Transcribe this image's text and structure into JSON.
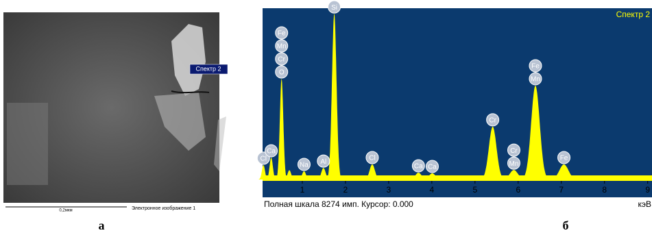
{
  "panel_a": {
    "spectrum_label": "Спектр 2",
    "scale_label": "0,2мкм",
    "caption": "Электронное изображение 1",
    "letter": "а"
  },
  "chart_data": {
    "type": "spectrum",
    "title": "Спектр 2",
    "footer": "Полная шкала 8274 имп. Курсор: 0.000",
    "x_unit": "кэВ",
    "letter": "б",
    "color": "#ffff00",
    "background": "#0b3a6e",
    "xlim": [
      0.08,
      9.1
    ],
    "ylim": [
      0,
      8300
    ],
    "xticks": [
      1,
      2,
      3,
      4,
      5,
      6,
      7,
      8,
      9
    ],
    "peaks": [
      {
        "energy": 0.1,
        "height": 700
      },
      {
        "energy": 0.28,
        "height": 1060
      },
      {
        "energy": 0.52,
        "height": 4880
      },
      {
        "energy": 0.7,
        "height": 450
      },
      {
        "energy": 1.04,
        "height": 400
      },
      {
        "energy": 1.49,
        "height": 560
      },
      {
        "energy": 1.74,
        "height": 8030
      },
      {
        "energy": 2.62,
        "height": 730
      },
      {
        "energy": 3.69,
        "height": 330
      },
      {
        "energy": 4.01,
        "height": 300
      },
      {
        "energy": 5.41,
        "height": 2560
      },
      {
        "energy": 5.9,
        "height": 460
      },
      {
        "energy": 6.4,
        "height": 4550
      },
      {
        "energy": 7.06,
        "height": 730
      }
    ],
    "peak_labels": [
      {
        "energy": 0.1,
        "elements": [
          "Cl"
        ]
      },
      {
        "energy": 0.28,
        "elements": [
          "Ca"
        ]
      },
      {
        "energy": 0.52,
        "elements": [
          "Fe",
          "Mn",
          "Cr",
          "O"
        ]
      },
      {
        "energy": 1.04,
        "elements": [
          "Na"
        ]
      },
      {
        "energy": 1.49,
        "elements": [
          "Al"
        ]
      },
      {
        "energy": 1.74,
        "elements": [
          "Si"
        ]
      },
      {
        "energy": 2.62,
        "elements": [
          "Cl"
        ]
      },
      {
        "energy": 3.69,
        "elements": [
          "Ca"
        ]
      },
      {
        "energy": 4.01,
        "elements": [
          "Ca"
        ]
      },
      {
        "energy": 5.41,
        "elements": [
          "Cr"
        ]
      },
      {
        "energy": 5.9,
        "elements": [
          "Cr",
          "Mn"
        ]
      },
      {
        "energy": 6.4,
        "elements": [
          "Fe",
          "Mn"
        ]
      },
      {
        "energy": 7.06,
        "elements": [
          "Fe"
        ]
      }
    ]
  }
}
